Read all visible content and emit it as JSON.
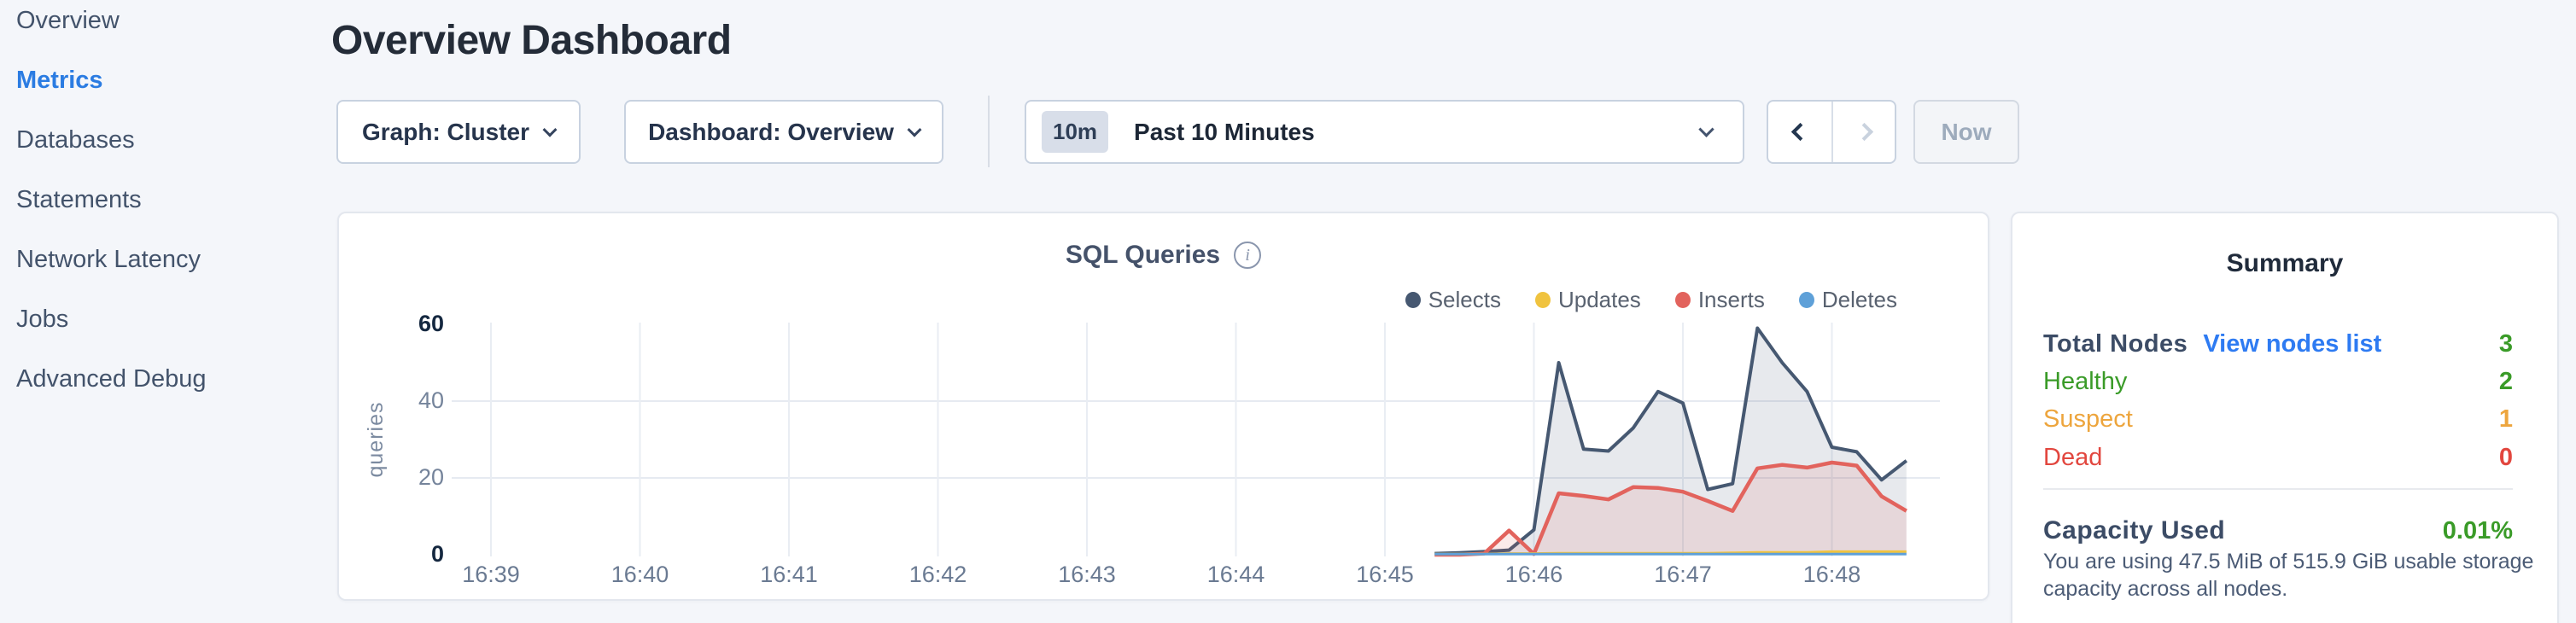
{
  "sidebar": {
    "items": [
      {
        "label": "Overview",
        "active": false
      },
      {
        "label": "Metrics",
        "active": true
      },
      {
        "label": "Databases",
        "active": false
      },
      {
        "label": "Statements",
        "active": false
      },
      {
        "label": "Network Latency",
        "active": false
      },
      {
        "label": "Jobs",
        "active": false
      },
      {
        "label": "Advanced Debug",
        "active": false
      }
    ]
  },
  "header": {
    "title": "Overview Dashboard"
  },
  "controls": {
    "graph_dropdown": "Graph: Cluster",
    "dashboard_dropdown": "Dashboard: Overview",
    "time_range": {
      "badge": "10m",
      "label": "Past 10 Minutes"
    },
    "now_label": "Now"
  },
  "chart": {
    "title": "SQL Queries",
    "info_icon": "i"
  },
  "chart_data": {
    "type": "area",
    "title": "SQL Queries",
    "ylabel": "queries",
    "ylim": [
      0,
      60
    ],
    "y_ticks": [
      0,
      20,
      40,
      60
    ],
    "x_ticks": [
      "16:39",
      "16:40",
      "16:41",
      "16:42",
      "16:43",
      "16:44",
      "16:45",
      "16:46",
      "16:47",
      "16:48"
    ],
    "grid": true,
    "legend_position": "top-right",
    "x": [
      "16:45:20",
      "16:45:30",
      "16:45:40",
      "16:45:50",
      "16:46:00",
      "16:46:10",
      "16:46:20",
      "16:46:30",
      "16:46:40",
      "16:46:50",
      "16:47:00",
      "16:47:10",
      "16:47:20",
      "16:47:30",
      "16:47:40",
      "16:47:50",
      "16:48:00",
      "16:48:10",
      "16:48:20",
      "16:48:30"
    ],
    "series": [
      {
        "name": "Selects",
        "color": "#465871",
        "values": [
          0.3,
          0.5,
          0.8,
          1.2,
          6.5,
          50,
          27.5,
          27,
          33,
          42.5,
          39.5,
          17,
          18.5,
          59,
          50,
          42.5,
          28,
          26.8,
          19.5,
          24.5
        ]
      },
      {
        "name": "Updates",
        "color": "#f0c33f",
        "values": [
          0.2,
          0.2,
          0.2,
          0.3,
          0.3,
          0.4,
          0.4,
          0.4,
          0.4,
          0.4,
          0.4,
          0.4,
          0.5,
          0.6,
          0.6,
          0.6,
          0.8,
          0.8,
          0.8,
          0.8
        ]
      },
      {
        "name": "Inserts",
        "color": "#e2635d",
        "values": [
          0,
          0,
          0.3,
          6.3,
          0.2,
          16,
          15.3,
          14.4,
          17.6,
          17.4,
          16.4,
          14,
          11.4,
          22.5,
          23.4,
          22.7,
          24,
          23.2,
          15.2,
          11.4
        ]
      },
      {
        "name": "Deletes",
        "color": "#5ea0d8",
        "values": [
          0.15,
          0.15,
          0.15,
          0.15,
          0.15,
          0.15,
          0.15,
          0.15,
          0.15,
          0.15,
          0.15,
          0.15,
          0.15,
          0.15,
          0.15,
          0.15,
          0.15,
          0.15,
          0.15,
          0.15
        ]
      }
    ]
  },
  "summary": {
    "title": "Summary",
    "total_nodes_label": "Total Nodes",
    "view_link": "View nodes list",
    "total_nodes_value": "3",
    "total_color": "#3a9b28",
    "rows": [
      {
        "label": "Healthy",
        "value": "2",
        "color": "#3a9b28"
      },
      {
        "label": "Suspect",
        "value": "1",
        "color": "#eda53d"
      },
      {
        "label": "Dead",
        "value": "0",
        "color": "#e2473f"
      }
    ],
    "capacity_label": "Capacity Used",
    "capacity_value": "0.01%",
    "capacity_color": "#3a9b28",
    "capacity_desc": "You are using 47.5 MiB of 515.9 GiB usable storage capacity across all nodes."
  }
}
